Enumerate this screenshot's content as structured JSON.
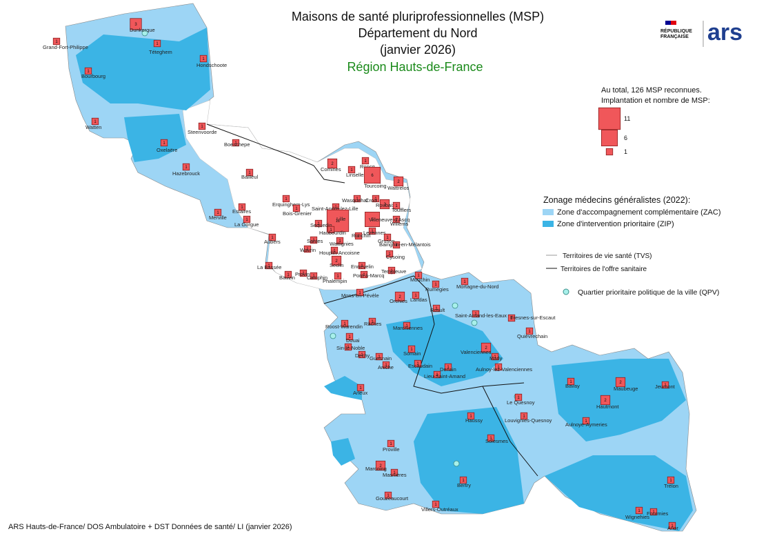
{
  "header": {
    "title_lines": [
      "Maisons de santé pluriprofessionnelles (MSP)",
      "Département du Nord",
      "(janvier 2026)"
    ],
    "region": "Région Hauts-de-France"
  },
  "logos": {
    "republique": [
      "RÉPUBLIQUE",
      "FRANÇAISE"
    ],
    "ars": "ars"
  },
  "legend": {
    "msp_lines": [
      "Au total, 126 MSP reconnues.",
      "Implantation et nombre de MSP:"
    ],
    "msp_sizes": [
      11,
      6,
      1
    ],
    "zonage_title": "Zonage médecins généralistes (2022):",
    "zonage_items": [
      {
        "label": "Zone d'accompagnement complémentaire (ZAC)",
        "color": "#9dd5f5"
      },
      {
        "label": "Zone d'intervention prioritaire (ZIP)",
        "color": "#3bb4e5"
      }
    ],
    "tvs": "Territoires de vie santé (TVS)",
    "tos": "Territoires de l'offre sanitaire",
    "qpv": "Quartier prioritaire politique de la ville (QPV)"
  },
  "places": [
    {
      "name": "Dunkerque",
      "count": 3
    },
    {
      "name": "Grand-Fort-Philippe",
      "count": 1
    },
    {
      "name": "Téteghem",
      "count": 1
    },
    {
      "name": "Hondschoote",
      "count": 1
    },
    {
      "name": "Bourbourg",
      "count": 1
    },
    {
      "name": "Watten",
      "count": 1
    },
    {
      "name": "Steenvoorde",
      "count": 1
    },
    {
      "name": "Boeschepe",
      "count": 1
    },
    {
      "name": "Oxelaëre",
      "count": 1
    },
    {
      "name": "Hazebrouck",
      "count": 1
    },
    {
      "name": "Bailleul",
      "count": 1
    },
    {
      "name": "Merville",
      "count": 1
    },
    {
      "name": "Estaires",
      "count": 1
    },
    {
      "name": "La Gorgue",
      "count": 1
    },
    {
      "name": "Erquinghem-Lys",
      "count": 1
    },
    {
      "name": "Bois-Grenier",
      "count": 1
    },
    {
      "name": "Comines",
      "count": 2
    },
    {
      "name": "Roncq",
      "count": 1
    },
    {
      "name": "Linselles",
      "count": 1
    },
    {
      "name": "Tourcoing",
      "count": 6
    },
    {
      "name": "Wattrelos",
      "count": 2
    },
    {
      "name": "Wasquehal",
      "count": 1
    },
    {
      "name": "Croix",
      "count": 1
    },
    {
      "name": "Roubaix",
      "count": 2
    },
    {
      "name": "Toufflers",
      "count": 1
    },
    {
      "name": "Willems",
      "count": 1
    },
    {
      "name": "Saint-André-lez-Lille",
      "count": 1
    },
    {
      "name": "Lille",
      "count": 11
    },
    {
      "name": "Villeneuve-d'Ascq",
      "count": 5
    },
    {
      "name": "Sequedin",
      "count": 1
    },
    {
      "name": "Haubourdin",
      "count": 1
    },
    {
      "name": "Lezennes",
      "count": 1
    },
    {
      "name": "Ronchin",
      "count": 1
    },
    {
      "name": "Gruson",
      "count": 1
    },
    {
      "name": "Wattignies",
      "count": 1
    },
    {
      "name": "Bainghin-en-Mélantois",
      "count": 1
    },
    {
      "name": "Aubers",
      "count": 1
    },
    {
      "name": "Santes",
      "count": 1
    },
    {
      "name": "Wavrin",
      "count": 1
    },
    {
      "name": "Houplin-Ancoisne",
      "count": 1
    },
    {
      "name": "Cysoing",
      "count": 1
    },
    {
      "name": "Seclin",
      "count": 2
    },
    {
      "name": "Ennevelin",
      "count": 1
    },
    {
      "name": "Templeuve",
      "count": 1
    },
    {
      "name": "La Bassée",
      "count": 1
    },
    {
      "name": "Bauvin",
      "count": 1
    },
    {
      "name": "Provin",
      "count": 1
    },
    {
      "name": "Camphin",
      "count": 1
    },
    {
      "name": "Phalempin",
      "count": 1
    },
    {
      "name": "Pont-à-Marcq",
      "count": 1
    },
    {
      "name": "Mouchin",
      "count": 1
    },
    {
      "name": "Mons-en-Pévèle",
      "count": 1
    },
    {
      "name": "Orchies",
      "count": 2
    },
    {
      "name": "Landas",
      "count": 1
    },
    {
      "name": "Rumegies",
      "count": 1
    },
    {
      "name": "Mortagne-du-Nord",
      "count": 1
    },
    {
      "name": "Rosult",
      "count": 1
    },
    {
      "name": "Saint-Amand-les-Eaux",
      "count": 1
    },
    {
      "name": "Fresnes-sur-Escaut",
      "count": 1
    },
    {
      "name": "Quiévrechain",
      "count": 1
    },
    {
      "name": "Roost-Warendin",
      "count": 1
    },
    {
      "name": "Râches",
      "count": 1
    },
    {
      "name": "Marchiennes",
      "count": 1
    },
    {
      "name": "Douai",
      "count": 1
    },
    {
      "name": "Sin-le-Noble",
      "count": 1
    },
    {
      "name": "Dechy",
      "count": 1
    },
    {
      "name": "Guesnain",
      "count": 1
    },
    {
      "name": "Somain",
      "count": 1
    },
    {
      "name": "Valenciennes",
      "count": 2
    },
    {
      "name": "Marly",
      "count": 1
    },
    {
      "name": "Aniche",
      "count": 1
    },
    {
      "name": "Escaudain",
      "count": 1
    },
    {
      "name": "Denain",
      "count": 1
    },
    {
      "name": "Aulnoy-lez-Valenciennes",
      "count": 1
    },
    {
      "name": "Arleux",
      "count": 1
    },
    {
      "name": "Lieu-Saint-Amand",
      "count": 1
    },
    {
      "name": "Le Quesnoy",
      "count": 1
    },
    {
      "name": "Bavay",
      "count": 1
    },
    {
      "name": "Maubeuge",
      "count": 2
    },
    {
      "name": "Jeumont",
      "count": 1
    },
    {
      "name": "Hautmont",
      "count": 2
    },
    {
      "name": "Louvignies-Quesnoy",
      "count": 1
    },
    {
      "name": "Aulnoye-Aymeries",
      "count": 1
    },
    {
      "name": "Haussy",
      "count": 1
    },
    {
      "name": "Solesmes",
      "count": 1
    },
    {
      "name": "Proville",
      "count": 1
    },
    {
      "name": "Marcoing",
      "count": 2
    },
    {
      "name": "Masnières",
      "count": 1
    },
    {
      "name": "Bertry",
      "count": 1
    },
    {
      "name": "Trélon",
      "count": 1
    },
    {
      "name": "Gouzeaucourt",
      "count": 1
    },
    {
      "name": "Villers-Outréaux",
      "count": 1
    },
    {
      "name": "Wignehies",
      "count": 1
    },
    {
      "name": "Fourmies",
      "count": 1
    },
    {
      "name": "Anor",
      "count": 1
    }
  ],
  "source": "ARS Hauts-de-France/ DOS Ambulatoire + DST Données de santé/ LI (janvier 2026)"
}
